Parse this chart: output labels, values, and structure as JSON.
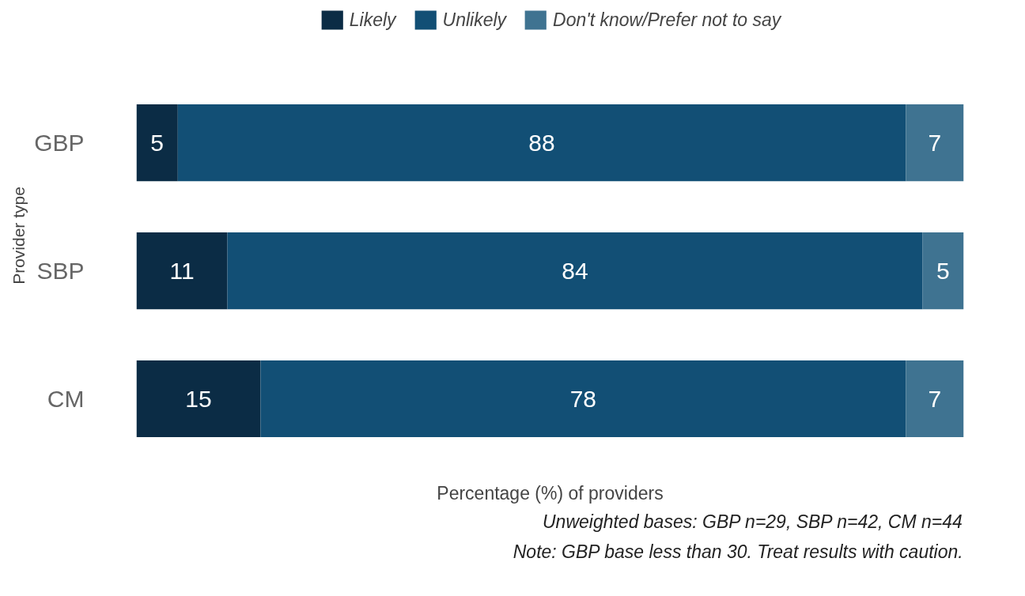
{
  "chart_data": {
    "type": "bar",
    "orientation": "horizontal",
    "stacked": true,
    "categories": [
      "GBP",
      "SBP",
      "CM"
    ],
    "series": [
      {
        "name": "Likely",
        "color": "#0b2c45",
        "values": [
          5,
          11,
          15
        ]
      },
      {
        "name": "Unlikely",
        "color": "#124f75",
        "values": [
          88,
          84,
          78
        ]
      },
      {
        "name": "Don't know/Prefer not to say",
        "color": "#3f7391",
        "values": [
          7,
          5,
          7
        ]
      }
    ],
    "xlim": [
      0,
      100
    ],
    "xlabel": "Percentage (%) of providers",
    "ylabel": "Provider type",
    "data_labels": true,
    "legend": "top",
    "tick_labels": "y",
    "annotations": [
      "Unweighted bases: GBP n=29, SBP n=42, CM n=44",
      "Note: GBP base less than 30. Treat results with caution."
    ]
  }
}
